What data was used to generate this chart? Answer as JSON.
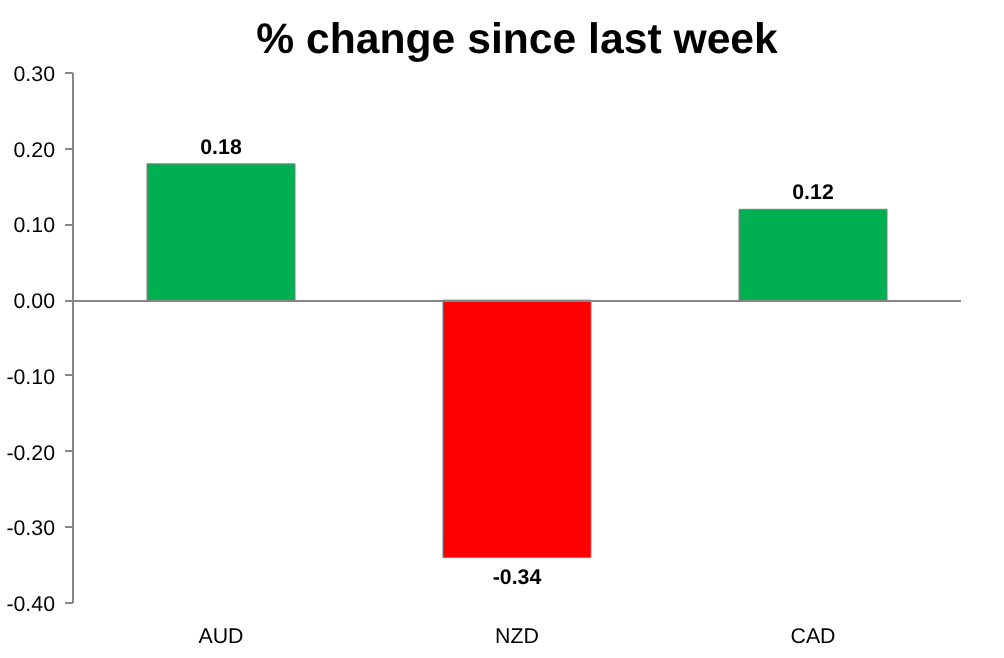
{
  "chart_data": {
    "type": "bar",
    "title": "% change since last week",
    "categories": [
      "AUD",
      "NZD",
      "CAD"
    ],
    "values": [
      0.18,
      -0.34,
      0.12
    ],
    "colors": [
      "#00b050",
      "#ff0000",
      "#00b050"
    ],
    "ylim": [
      -0.4,
      0.3
    ],
    "yticks": [
      {
        "value": -0.4,
        "label": "-0.40"
      },
      {
        "value": -0.3,
        "label": "-0.30"
      },
      {
        "value": -0.2,
        "label": "-0.20"
      },
      {
        "value": -0.1,
        "label": "-0.10"
      },
      {
        "value": 0,
        "label": "0.00"
      },
      {
        "value": 0.1,
        "label": "0.10"
      },
      {
        "value": 0.2,
        "label": "0.20"
      },
      {
        "value": 0.3,
        "label": "0.30"
      }
    ],
    "data_labels": true
  }
}
